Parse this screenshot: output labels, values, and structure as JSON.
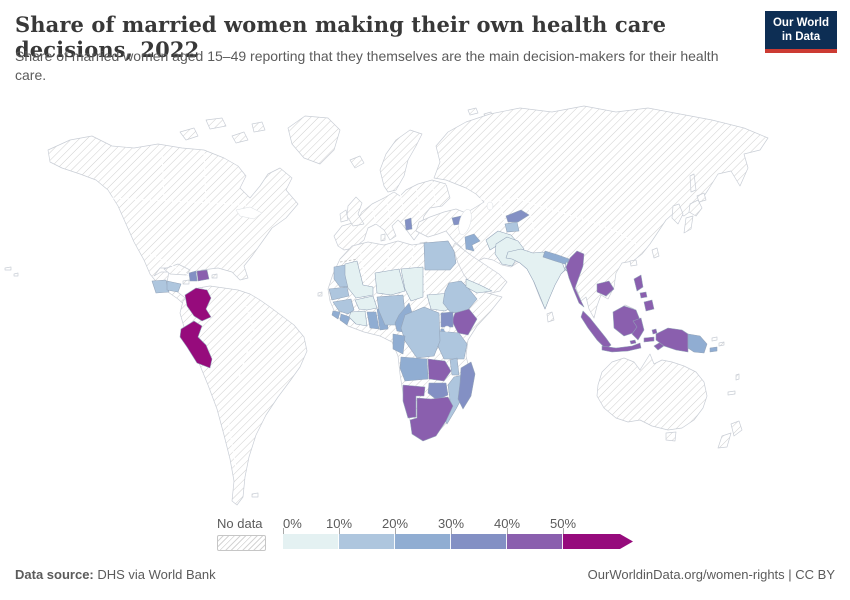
{
  "header": {
    "title": "Share of married women making their own health care decisions, 2022",
    "subtitle": "Share of married women aged 15–49 reporting that they themselves are the main decision-makers for their health care.",
    "logo": {
      "line1": "Our World",
      "line2": "in Data"
    }
  },
  "palette": {
    "no_data_hatch": "#cfcfcf",
    "land_stroke": "#c9ced6",
    "country_stroke": "#93a3b8",
    "text_gray": "#5b5b5b",
    "title_color": "#383838",
    "logo_navy": "#0d2e54",
    "logo_red": "#cc3b33"
  },
  "legend": {
    "no_data_label": "No data",
    "bins": [
      {
        "label": "0%",
        "color": "#e4f1f2"
      },
      {
        "label": "10%",
        "color": "#aec6de"
      },
      {
        "label": "20%",
        "color": "#90add2"
      },
      {
        "label": "30%",
        "color": "#8390c4"
      },
      {
        "label": "40%",
        "color": "#8a5fae"
      },
      {
        "label": "50%",
        "color": "#960b7c"
      }
    ]
  },
  "footer": {
    "source_label": "Data source:",
    "source_value": " DHS via World Bank",
    "right_text": "OurWorldinData.org/women-rights | CC BY"
  },
  "chart_data": {
    "type": "choropleth_world_map",
    "title": "Share of married women making their own health care decisions, 2022",
    "unit": "% of married women aged 15–49",
    "legend_position": "bottom",
    "no_data_style": "diagonal-hatch",
    "bins": [
      {
        "range": "0–10%",
        "color": "#e4f1f2",
        "countries": [
          "India",
          "Pakistan",
          "Afghanistan",
          "Bangladesh",
          "Yemen",
          "Mali",
          "Burkina Faso",
          "Niger",
          "Chad",
          "Côte d'Ivoire",
          "South Sudan",
          "Senegal"
        ]
      },
      {
        "range": "10–20%",
        "color": "#aec6de",
        "countries": [
          "Guatemala",
          "Honduras",
          "Egypt",
          "Mauritania",
          "Guinea",
          "Nigeria",
          "Ethiopia",
          "Tanzania",
          "Malawi",
          "Mozambique",
          "Democratic Republic of Congo",
          "Tajikistan"
        ]
      },
      {
        "range": "20–30%",
        "color": "#90add2",
        "countries": [
          "Jordan",
          "Nepal",
          "Ghana",
          "Togo",
          "Benin",
          "Sierra Leone",
          "Liberia",
          "Cameroon",
          "Gabon",
          "Congo",
          "Angola",
          "Rwanda",
          "Burundi",
          "Papua New Guinea"
        ]
      },
      {
        "range": "30–40%",
        "color": "#8390c4",
        "countries": [
          "Haiti",
          "Albania",
          "Armenia",
          "Kyrgyzstan",
          "Uganda",
          "Zimbabwe",
          "Madagascar"
        ]
      },
      {
        "range": "40–50%",
        "color": "#8a5fae",
        "countries": [
          "Dominican Republic",
          "Kenya",
          "Zambia",
          "Namibia",
          "South Africa",
          "Lesotho",
          "Myanmar",
          "Cambodia",
          "Philippines",
          "Indonesia",
          "Timor-Leste"
        ]
      },
      {
        "range": "50%+",
        "color": "#960b7c",
        "countries": [
          "Colombia",
          "Peru"
        ]
      }
    ]
  }
}
